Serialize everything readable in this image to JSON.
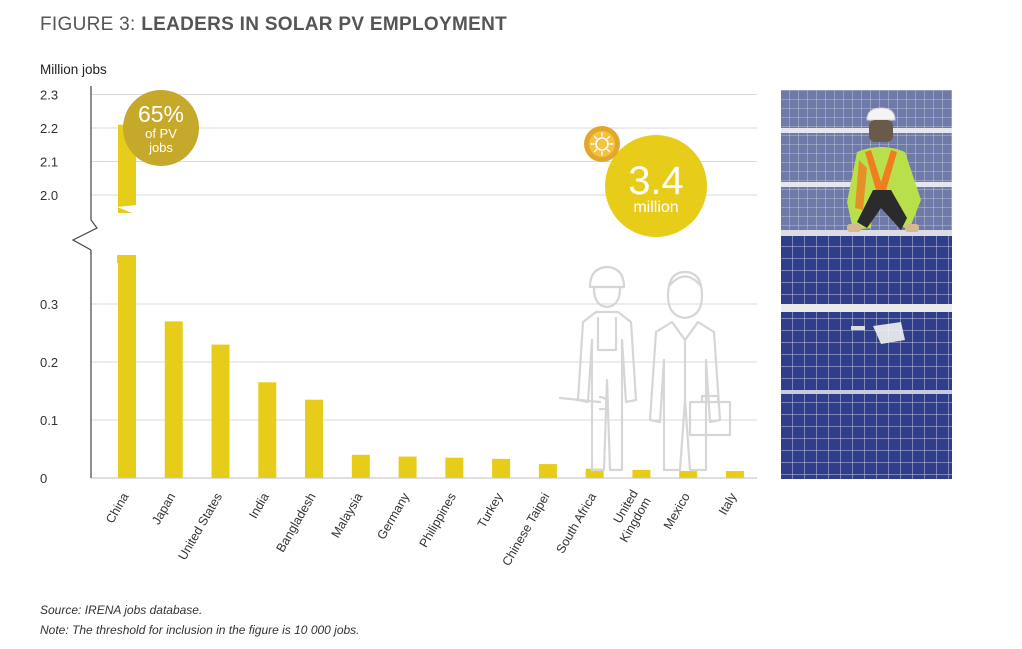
{
  "figure": {
    "prefix": "FIGURE 3: ",
    "title": "LEADERS IN SOLAR PV EMPLOYMENT"
  },
  "callouts": {
    "share_value": "65%",
    "share_line1": "of PV",
    "share_line2": "jobs",
    "total_value": "3.4",
    "total_unit": "million"
  },
  "notes": {
    "source": "Source: IRENA jobs database.",
    "note": "Note: The threshold for inclusion in the figure is 10 000 jobs."
  },
  "colors": {
    "bar": "#e8cc1a",
    "callout_dark": "#c6a82a",
    "callout_bright": "#e8cc1a",
    "grid": "#d9d9d9"
  },
  "chart_data": {
    "type": "bar",
    "ylabel": "Million jobs",
    "title": "",
    "xlabel": "",
    "axis_break": true,
    "upper_range": [
      1.9,
      2.3
    ],
    "lower_range": [
      0,
      0.35
    ],
    "y_ticks": [
      "0",
      "0.1",
      "0.2",
      "0.3",
      "2.0",
      "2.1",
      "2.2",
      "2.3"
    ],
    "categories": [
      "China",
      "Japan",
      "United States",
      "India",
      "Bangladesh",
      "Malaysia",
      "Germany",
      "Philippines",
      "Turkey",
      "Chinese Taipei",
      "South Africa",
      "United Kingdom",
      "Mexico",
      "Italy"
    ],
    "category_lines": [
      [
        "China"
      ],
      [
        "Japan"
      ],
      [
        "United States"
      ],
      [
        "India"
      ],
      [
        "Bangladesh"
      ],
      [
        "Malaysia"
      ],
      [
        "Germany"
      ],
      [
        "Philippines"
      ],
      [
        "Turkey"
      ],
      [
        "Chinese Taipei"
      ],
      [
        "South Africa"
      ],
      [
        "United",
        "Kingdom"
      ],
      [
        "Mexico"
      ],
      [
        "Italy"
      ]
    ],
    "values": [
      2.21,
      0.27,
      0.23,
      0.165,
      0.135,
      0.04,
      0.037,
      0.035,
      0.033,
      0.024,
      0.016,
      0.014,
      0.012,
      0.012
    ],
    "grid": true
  }
}
